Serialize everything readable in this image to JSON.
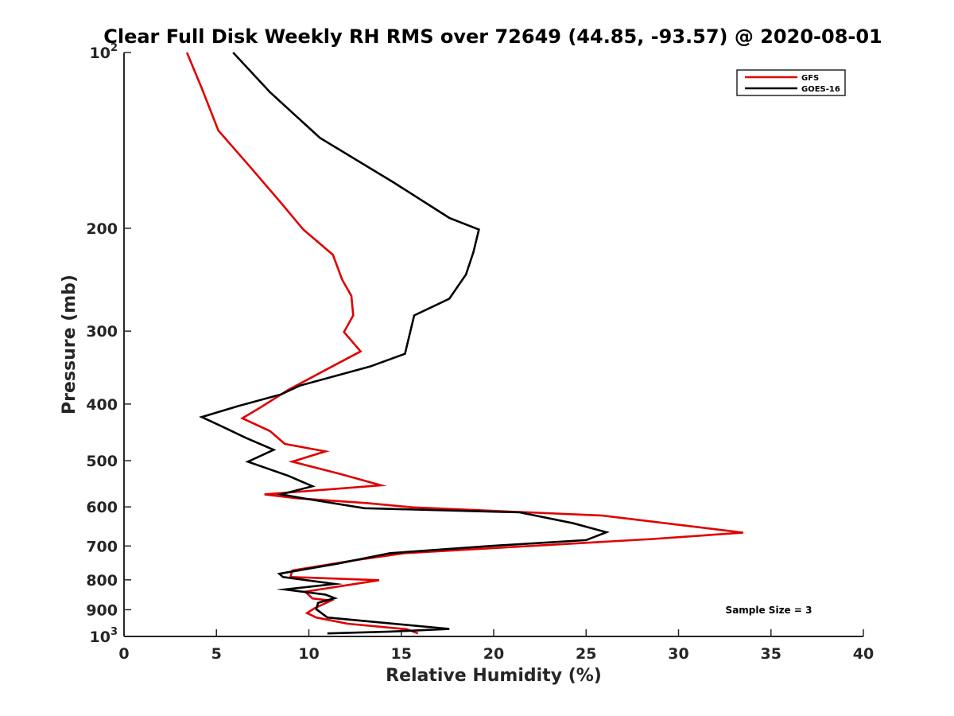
{
  "chart_data": {
    "type": "line",
    "title": "Clear Full Disk Weekly RH RMS over 72649 (44.85, -93.57) @ 2020-08-01",
    "xlabel": "Relative Humidity (%)",
    "ylabel": "Pressure (mb)",
    "xlim": [
      0,
      40
    ],
    "ylim": [
      100,
      1000
    ],
    "y_scale": "log",
    "y_reversed": true,
    "x_ticks": [
      0,
      5,
      10,
      15,
      20,
      25,
      30,
      35,
      40
    ],
    "x_tick_labels": [
      "0",
      "5",
      "10",
      "15",
      "20",
      "25",
      "30",
      "35",
      "40"
    ],
    "y_ticks": [
      100,
      200,
      300,
      400,
      500,
      600,
      700,
      800,
      900,
      1000
    ],
    "y_tick_labels": [
      {
        "base": "10",
        "sup": "2"
      },
      {
        "base": "200",
        "sup": ""
      },
      {
        "base": "300",
        "sup": ""
      },
      {
        "base": "400",
        "sup": ""
      },
      {
        "base": "500",
        "sup": ""
      },
      {
        "base": "600",
        "sup": ""
      },
      {
        "base": "700",
        "sup": ""
      },
      {
        "base": "800",
        "sup": ""
      },
      {
        "base": "900",
        "sup": ""
      },
      {
        "base": "10",
        "sup": "3"
      }
    ],
    "grid": false,
    "legend_position": "top-right",
    "annotation": "Sample Size = 3",
    "series": [
      {
        "name": "GFS",
        "color": "#e00000",
        "points": [
          [
            3.4,
            100
          ],
          [
            4.2,
            115
          ],
          [
            5.1,
            136
          ],
          [
            6.9,
            158
          ],
          [
            8.5,
            181
          ],
          [
            9.7,
            201
          ],
          [
            11.3,
            222
          ],
          [
            11.8,
            245
          ],
          [
            12.3,
            261
          ],
          [
            12.4,
            282
          ],
          [
            11.9,
            301
          ],
          [
            12.8,
            325
          ],
          [
            10.8,
            351
          ],
          [
            8.9,
            378
          ],
          [
            7.4,
            405
          ],
          [
            6.4,
            423
          ],
          [
            7.9,
            445
          ],
          [
            8.7,
            468
          ],
          [
            10.9,
            482
          ],
          [
            9.1,
            502
          ],
          [
            11.7,
            527
          ],
          [
            13.9,
            551
          ],
          [
            7.6,
            571
          ],
          [
            9.4,
            580
          ],
          [
            13.1,
            591
          ],
          [
            15.6,
            601
          ],
          [
            25.9,
            621
          ],
          [
            33.5,
            664
          ],
          [
            28.6,
            681
          ],
          [
            21.3,
            702
          ],
          [
            15.2,
            720
          ],
          [
            12.3,
            742
          ],
          [
            9.1,
            771
          ],
          [
            9.0,
            791
          ],
          [
            13.8,
            801
          ],
          [
            9.8,
            838
          ],
          [
            10.2,
            861
          ],
          [
            11.2,
            868
          ],
          [
            10.3,
            895
          ],
          [
            9.9,
            912
          ],
          [
            10.4,
            928
          ],
          [
            12.1,
            951
          ],
          [
            15.3,
            972
          ],
          [
            15.9,
            988
          ]
        ]
      },
      {
        "name": "GOES-16",
        "color": "#000000",
        "points": [
          [
            5.9,
            100
          ],
          [
            7.9,
            117
          ],
          [
            10.6,
            140
          ],
          [
            14.6,
            167
          ],
          [
            17.6,
            192
          ],
          [
            19.2,
            201
          ],
          [
            18.9,
            220
          ],
          [
            18.5,
            240
          ],
          [
            17.6,
            264
          ],
          [
            15.7,
            282
          ],
          [
            15.2,
            328
          ],
          [
            13.3,
            345
          ],
          [
            9.5,
            372
          ],
          [
            8.5,
            385
          ],
          [
            6.2,
            403
          ],
          [
            4.2,
            421
          ],
          [
            5.3,
            437
          ],
          [
            6.6,
            457
          ],
          [
            8.1,
            479
          ],
          [
            6.7,
            502
          ],
          [
            8.9,
            531
          ],
          [
            10.2,
            553
          ],
          [
            8.5,
            571
          ],
          [
            9.7,
            580
          ],
          [
            13.0,
            603
          ],
          [
            21.4,
            613
          ],
          [
            24.3,
            640
          ],
          [
            26.1,
            663
          ],
          [
            25.0,
            684
          ],
          [
            19.8,
            700
          ],
          [
            14.4,
            720
          ],
          [
            11.6,
            750
          ],
          [
            8.4,
            781
          ],
          [
            8.6,
            791
          ],
          [
            11.4,
            813
          ],
          [
            8.7,
            831
          ],
          [
            10.9,
            848
          ],
          [
            11.4,
            860
          ],
          [
            10.5,
            876
          ],
          [
            10.4,
            898
          ],
          [
            11.0,
            928
          ],
          [
            17.6,
            971
          ],
          [
            14.4,
            981
          ],
          [
            11.0,
            988
          ]
        ]
      }
    ]
  }
}
